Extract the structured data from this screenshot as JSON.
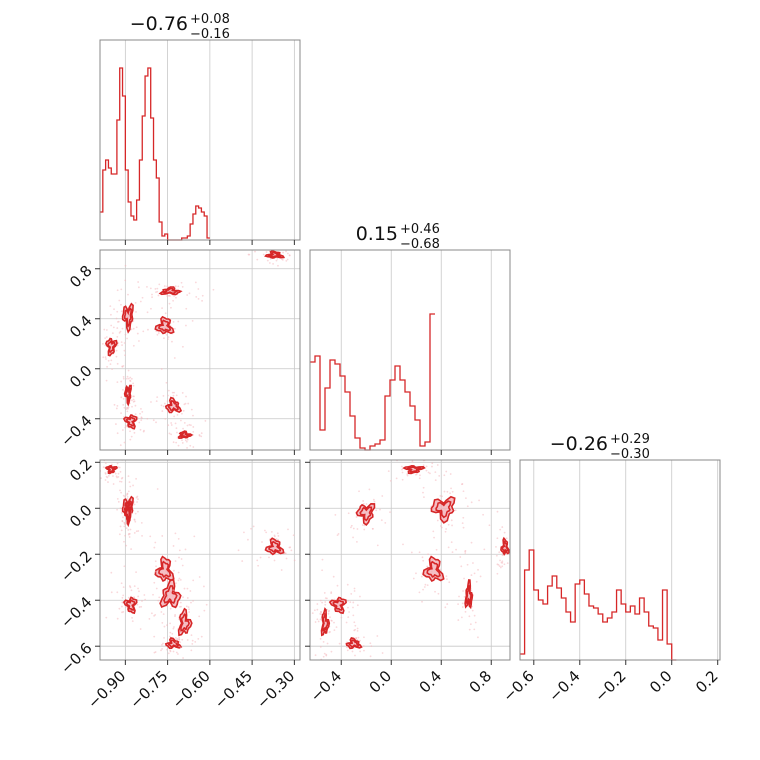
{
  "colors": {
    "line": "#d62728",
    "fill": "#f2aab1",
    "grid": "#c8c8c8",
    "frame": "#888888"
  },
  "chart_data": {
    "type": "corner",
    "parameters": 3,
    "titles": [
      {
        "median": "−0.76",
        "plus": "+0.08",
        "minus": "−0.16"
      },
      {
        "median": "0.15",
        "plus": "+0.46",
        "minus": "−0.68"
      },
      {
        "median": "−0.26",
        "plus": "+0.29",
        "minus": "−0.30"
      }
    ],
    "ranges": [
      [
        -0.99,
        -0.28
      ],
      [
        -0.65,
        0.95
      ],
      [
        -0.66,
        0.21
      ]
    ],
    "ticks": [
      {
        "values": [
          -0.9,
          -0.75,
          -0.6,
          -0.45,
          -0.3
        ],
        "labels": [
          "−0.90",
          "−0.75",
          "−0.60",
          "−0.45",
          "−0.30"
        ]
      },
      {
        "values": [
          -0.4,
          0.0,
          0.4,
          0.8
        ],
        "labels": [
          "−0.4",
          "0.0",
          "0.4",
          "0.8"
        ]
      },
      {
        "values": [
          -0.6,
          -0.4,
          -0.2,
          0.0,
          0.2
        ],
        "labels": [
          "−0.6",
          "−0.4",
          "−0.2",
          "0.0",
          "0.2"
        ]
      }
    ],
    "histograms": [
      {
        "bin_edges_start": -0.99,
        "bin_width": 0.01,
        "counts": [
          0.14,
          0.35,
          0.4,
          0.36,
          0.33,
          0.33,
          0.6,
          0.86,
          0.72,
          0.35,
          0.19,
          0.12,
          0.1,
          0.2,
          0.4,
          0.62,
          0.82,
          0.86,
          0.61,
          0.4,
          0.31,
          0.09,
          0.02,
          0.03,
          0.0,
          0.0,
          0.0,
          0.0,
          0.0,
          0.01,
          0.01,
          0.02,
          0.08,
          0.13,
          0.17,
          0.16,
          0.14,
          0.12,
          0.01
        ]
      },
      {
        "bin_edges_start": -0.65,
        "bin_width": 0.04,
        "counts": [
          0.44,
          0.47,
          0.1,
          0.31,
          0.45,
          0.43,
          0.37,
          0.29,
          0.17,
          0.06,
          0.01,
          0.0,
          0.02,
          0.03,
          0.05,
          0.27,
          0.35,
          0.42,
          0.35,
          0.29,
          0.22,
          0.15,
          0.02,
          0.04,
          0.68
        ]
      },
      {
        "bin_edges_start": -0.66,
        "bin_width": 0.02,
        "counts": [
          0.03,
          0.45,
          0.55,
          0.35,
          0.3,
          0.28,
          0.37,
          0.42,
          0.36,
          0.31,
          0.24,
          0.19,
          0.38,
          0.4,
          0.33,
          0.27,
          0.26,
          0.23,
          0.19,
          0.21,
          0.24,
          0.35,
          0.28,
          0.24,
          0.27,
          0.23,
          0.31,
          0.24,
          0.17,
          0.16,
          0.1,
          0.35,
          0.08,
          0.0
        ]
      }
    ],
    "modes": [
      {
        "p0": -0.89,
        "p1": 0.42,
        "p2": 0.0,
        "w": 0.5,
        "s0": 0.014,
        "s1": 0.07,
        "s2": 0.035
      },
      {
        "p0": -0.95,
        "p1": 0.18,
        "p2": 0.17,
        "w": 0.45,
        "s0": 0.012,
        "s1": 0.05,
        "s2": 0.012
      },
      {
        "p0": -0.88,
        "p1": -0.42,
        "p2": -0.42,
        "w": 0.45,
        "s0": 0.014,
        "s1": 0.04,
        "s2": 0.025
      },
      {
        "p0": -0.89,
        "p1": -0.2,
        "p2": -0.02,
        "w": 0.35,
        "s0": 0.008,
        "s1": 0.05,
        "s2": 0.03
      },
      {
        "p0": -0.76,
        "p1": 0.34,
        "p2": -0.27,
        "w": 0.55,
        "s0": 0.02,
        "s1": 0.05,
        "s2": 0.04
      },
      {
        "p0": -0.74,
        "p1": 0.62,
        "p2": -0.38,
        "w": 0.4,
        "s0": 0.025,
        "s1": 0.02,
        "s2": 0.04
      },
      {
        "p0": -0.73,
        "p1": -0.3,
        "p2": -0.59,
        "w": 0.55,
        "s0": 0.018,
        "s1": 0.04,
        "s2": 0.015
      },
      {
        "p0": -0.69,
        "p1": -0.53,
        "p2": -0.5,
        "w": 0.45,
        "s0": 0.015,
        "s1": 0.02,
        "s2": 0.04
      },
      {
        "p0": -0.37,
        "p1": 0.91,
        "p2": -0.17,
        "w": 0.55,
        "s0": 0.02,
        "s1": 0.02,
        "s2": 0.025
      }
    ]
  }
}
